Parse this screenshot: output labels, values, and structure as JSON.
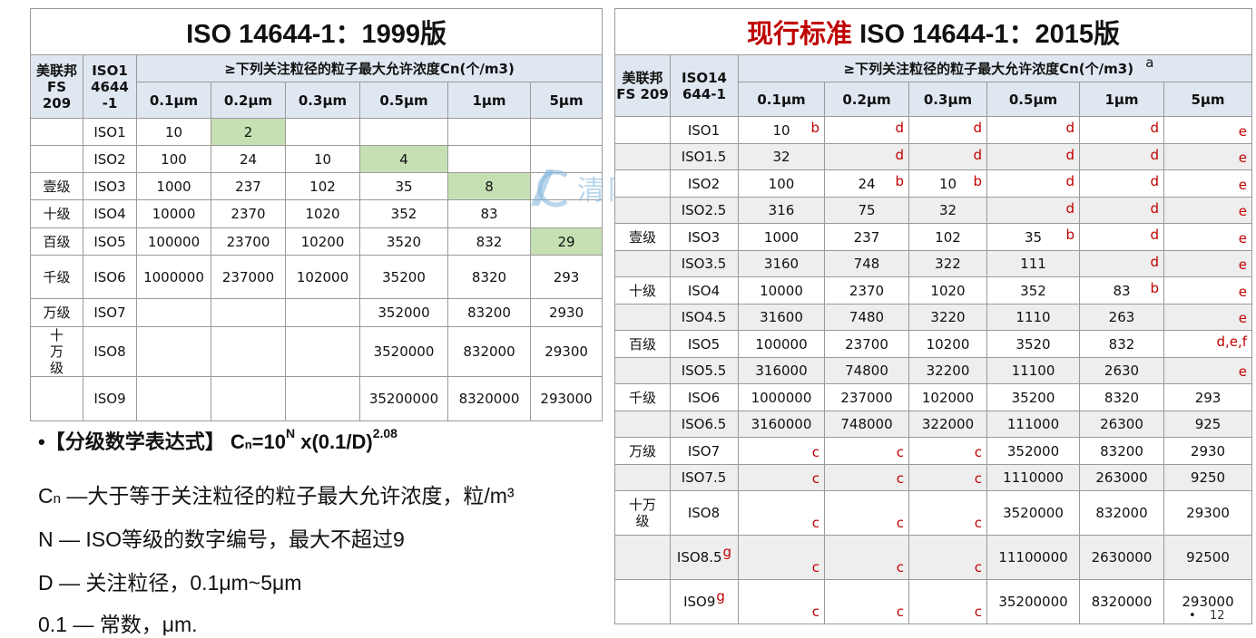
{
  "left": {
    "title": "ISO 14644-1：1999版",
    "head_fs": "美联邦FS 209",
    "head_iso": "ISO1 4644 -1",
    "head_span": "≥下列关注粒径的粒子最大允许浓度Cn(个/m3)",
    "sizes": [
      "0.1μm",
      "0.2μm",
      "0.3μm",
      "0.5μm",
      "1μm",
      "5μm"
    ],
    "rows": [
      {
        "fs": "",
        "iso": "ISO1",
        "v": [
          "10",
          "2",
          "",
          "",
          "",
          ""
        ]
      },
      {
        "fs": "",
        "iso": "ISO2",
        "v": [
          "100",
          "24",
          "10",
          "4",
          "",
          ""
        ]
      },
      {
        "fs": "壹级",
        "iso": "ISO3",
        "v": [
          "1000",
          "237",
          "102",
          "35",
          "8",
          ""
        ]
      },
      {
        "fs": "十级",
        "iso": "ISO4",
        "v": [
          "10000",
          "2370",
          "1020",
          "352",
          "83",
          ""
        ]
      },
      {
        "fs": "百级",
        "iso": "ISO5",
        "v": [
          "100000",
          "23700",
          "10200",
          "3520",
          "832",
          "29"
        ]
      },
      {
        "fs": "千级",
        "iso": "ISO6",
        "v": [
          "1000000",
          "237000",
          "102000",
          "35200",
          "8320",
          "293"
        ]
      },
      {
        "fs": "万级",
        "iso": "ISO7",
        "v": [
          "",
          "",
          "",
          "352000",
          "83200",
          "2930"
        ]
      },
      {
        "fs": "十万级",
        "iso": "ISO8",
        "v": [
          "",
          "",
          "",
          "3520000",
          "832000",
          "29300"
        ]
      },
      {
        "fs": "",
        "iso": "ISO9",
        "v": [
          "",
          "",
          "",
          "35200000",
          "8320000",
          "293000"
        ]
      }
    ]
  },
  "right": {
    "title_red": "现行标准",
    "title_black": " ISO 14644-1：2015版",
    "head_fs": "美联邦FS 209",
    "head_iso": "ISO14 644-1",
    "head_span": "≥下列关注粒径的粒子最大允许浓度Cn(个/m3)",
    "head_note": "a",
    "sizes": [
      "0.1μm",
      "0.2μm",
      "0.3μm",
      "0.5μm",
      "1μm",
      "5μm"
    ],
    "rows": [
      {
        "fs": "",
        "iso": "ISO1",
        "isonote": "",
        "v": [
          "10",
          "",
          "",
          "",
          "",
          ""
        ],
        "n": [
          "b",
          "d",
          "d",
          "d",
          "d",
          "e"
        ]
      },
      {
        "fs": "",
        "iso": "ISO1.5",
        "isonote": "",
        "v": [
          "32",
          "",
          "",
          "",
          "",
          ""
        ],
        "n": [
          "",
          "d",
          "d",
          "d",
          "d",
          "e"
        ]
      },
      {
        "fs": "",
        "iso": "ISO2",
        "isonote": "",
        "v": [
          "100",
          "24",
          "10",
          "",
          "",
          ""
        ],
        "n": [
          "",
          "b",
          "b",
          "d",
          "d",
          "e"
        ]
      },
      {
        "fs": "",
        "iso": "ISO2.5",
        "isonote": "",
        "v": [
          "316",
          "75",
          "32",
          "",
          "",
          ""
        ],
        "n": [
          "",
          "",
          "",
          "d",
          "d",
          "e"
        ]
      },
      {
        "fs": "壹级",
        "iso": "ISO3",
        "isonote": "",
        "v": [
          "1000",
          "237",
          "102",
          "35",
          "",
          ""
        ],
        "n": [
          "",
          "",
          "",
          "b",
          "d",
          "e"
        ]
      },
      {
        "fs": "",
        "iso": "ISO3.5",
        "isonote": "",
        "v": [
          "3160",
          "748",
          "322",
          "111",
          "",
          ""
        ],
        "n": [
          "",
          "",
          "",
          "",
          "d",
          "e"
        ]
      },
      {
        "fs": "十级",
        "iso": "ISO4",
        "isonote": "",
        "v": [
          "10000",
          "2370",
          "1020",
          "352",
          "83",
          ""
        ],
        "n": [
          "",
          "",
          "",
          "",
          "b",
          "e"
        ]
      },
      {
        "fs": "",
        "iso": "ISO4.5",
        "isonote": "",
        "v": [
          "31600",
          "7480",
          "3220",
          "1110",
          "263",
          ""
        ],
        "n": [
          "",
          "",
          "",
          "",
          "",
          "e"
        ]
      },
      {
        "fs": "百级",
        "iso": "ISO5",
        "isonote": "",
        "v": [
          "100000",
          "23700",
          "10200",
          "3520",
          "832",
          ""
        ],
        "n": [
          "",
          "",
          "",
          "",
          "",
          "d,e,f"
        ]
      },
      {
        "fs": "",
        "iso": "ISO5.5",
        "isonote": "",
        "v": [
          "316000",
          "74800",
          "32200",
          "11100",
          "2630",
          ""
        ],
        "n": [
          "",
          "",
          "",
          "",
          "",
          "e"
        ]
      },
      {
        "fs": "千级",
        "iso": "ISO6",
        "isonote": "",
        "v": [
          "1000000",
          "237000",
          "102000",
          "35200",
          "8320",
          "293"
        ],
        "n": [
          "",
          "",
          "",
          "",
          "",
          ""
        ]
      },
      {
        "fs": "",
        "iso": "ISO6.5",
        "isonote": "",
        "v": [
          "3160000",
          "748000",
          "322000",
          "111000",
          "26300",
          "925"
        ],
        "n": [
          "",
          "",
          "",
          "",
          "",
          ""
        ]
      },
      {
        "fs": "万级",
        "iso": "ISO7",
        "isonote": "",
        "v": [
          "",
          "",
          "",
          "352000",
          "83200",
          "2930"
        ],
        "n": [
          "c",
          "c",
          "c",
          "",
          "",
          ""
        ]
      },
      {
        "fs": "",
        "iso": "ISO7.5",
        "isonote": "",
        "v": [
          "",
          "",
          "",
          "1110000",
          "263000",
          "9250"
        ],
        "n": [
          "c",
          "c",
          "c",
          "",
          "",
          ""
        ]
      },
      {
        "fs": "十万级",
        "iso": "ISO8",
        "isonote": "",
        "v": [
          "",
          "",
          "",
          "3520000",
          "832000",
          "29300"
        ],
        "n": [
          "c",
          "c",
          "c",
          "",
          "",
          ""
        ]
      },
      {
        "fs": "",
        "iso": "ISO8.5",
        "isonote": "g",
        "v": [
          "",
          "",
          "",
          "11100000",
          "2630000",
          "92500"
        ],
        "n": [
          "c",
          "c",
          "c",
          "",
          "",
          ""
        ]
      },
      {
        "fs": "",
        "iso": "ISO9",
        "isonote": "g",
        "v": [
          "",
          "",
          "",
          "35200000",
          "8320000",
          "293000"
        ],
        "n": [
          "c",
          "c",
          "c",
          "",
          "",
          ""
        ]
      }
    ]
  },
  "formula": {
    "bullet": "•",
    "label": "【分级数学表达式】 C",
    "sub": "n",
    "mid": "=10",
    "sup1": "N",
    "tail": " x(0.1/D)",
    "sup2": "2.08"
  },
  "desc": [
    {
      "pre": "C",
      "sub": "n",
      "text": " —大于等于关注粒径的粒子最大允许浓度，粒/m³"
    },
    {
      "pre": "",
      "sub": "",
      "text": "N — ISO等级的数字编号，最大不超过9"
    },
    {
      "pre": "",
      "sub": "",
      "text": "D — 关注粒径，0.1μm~5μm"
    },
    {
      "pre": "",
      "sub": "",
      "text": "0.1 — 常数，μm."
    }
  ],
  "watermark": "清阳工程",
  "page_bullet": "•",
  "page_number": "12"
}
